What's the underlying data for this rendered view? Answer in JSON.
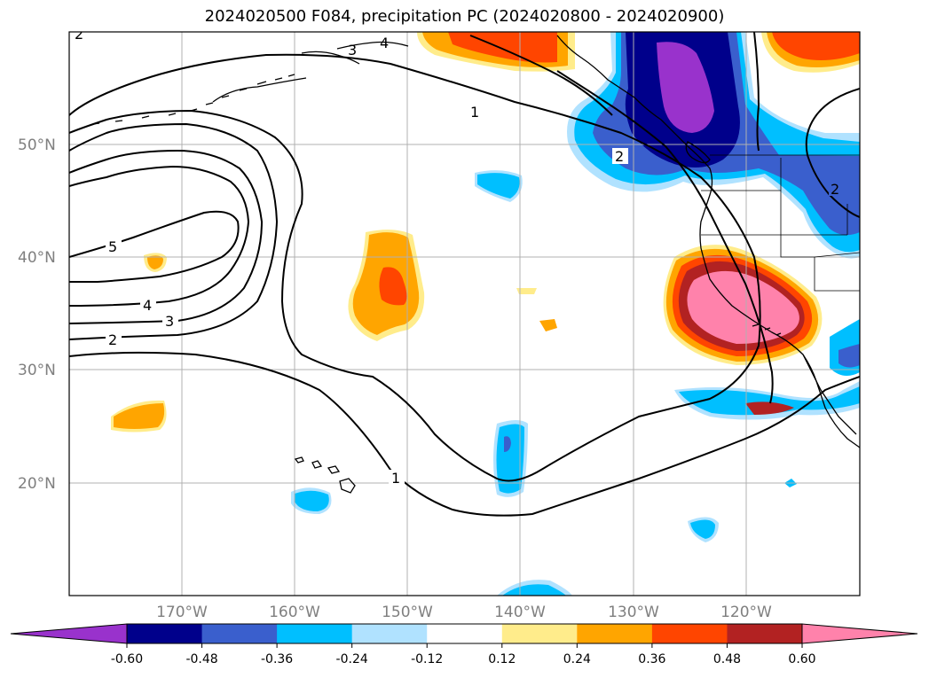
{
  "title": "2024020500 F084, precipitation PC (2024020800 - 2024020900)",
  "lat_labels": [
    "50°N",
    "40°N",
    "30°N",
    "20°N"
  ],
  "lon_labels": [
    "170°W",
    "160°W",
    "150°W",
    "140°W",
    "130°W",
    "120°W"
  ],
  "contour_labels": [
    "1",
    "1",
    "2",
    "2",
    "3",
    "4",
    "5",
    "3",
    "4",
    "2",
    "2"
  ],
  "colorbar": {
    "ticks": [
      "-0.60",
      "-0.48",
      "-0.36",
      "-0.24",
      "-0.12",
      "0.12",
      "0.24",
      "0.36",
      "0.48",
      "0.60"
    ],
    "colors": [
      "#9932CC",
      "#00008B",
      "#3A5FCD",
      "#00BFFF",
      "#B0E2FF",
      "#FFFFFF",
      "#FFEC8B",
      "#FFA500",
      "#FF4500",
      "#B22222",
      "#FF82AB"
    ]
  }
}
